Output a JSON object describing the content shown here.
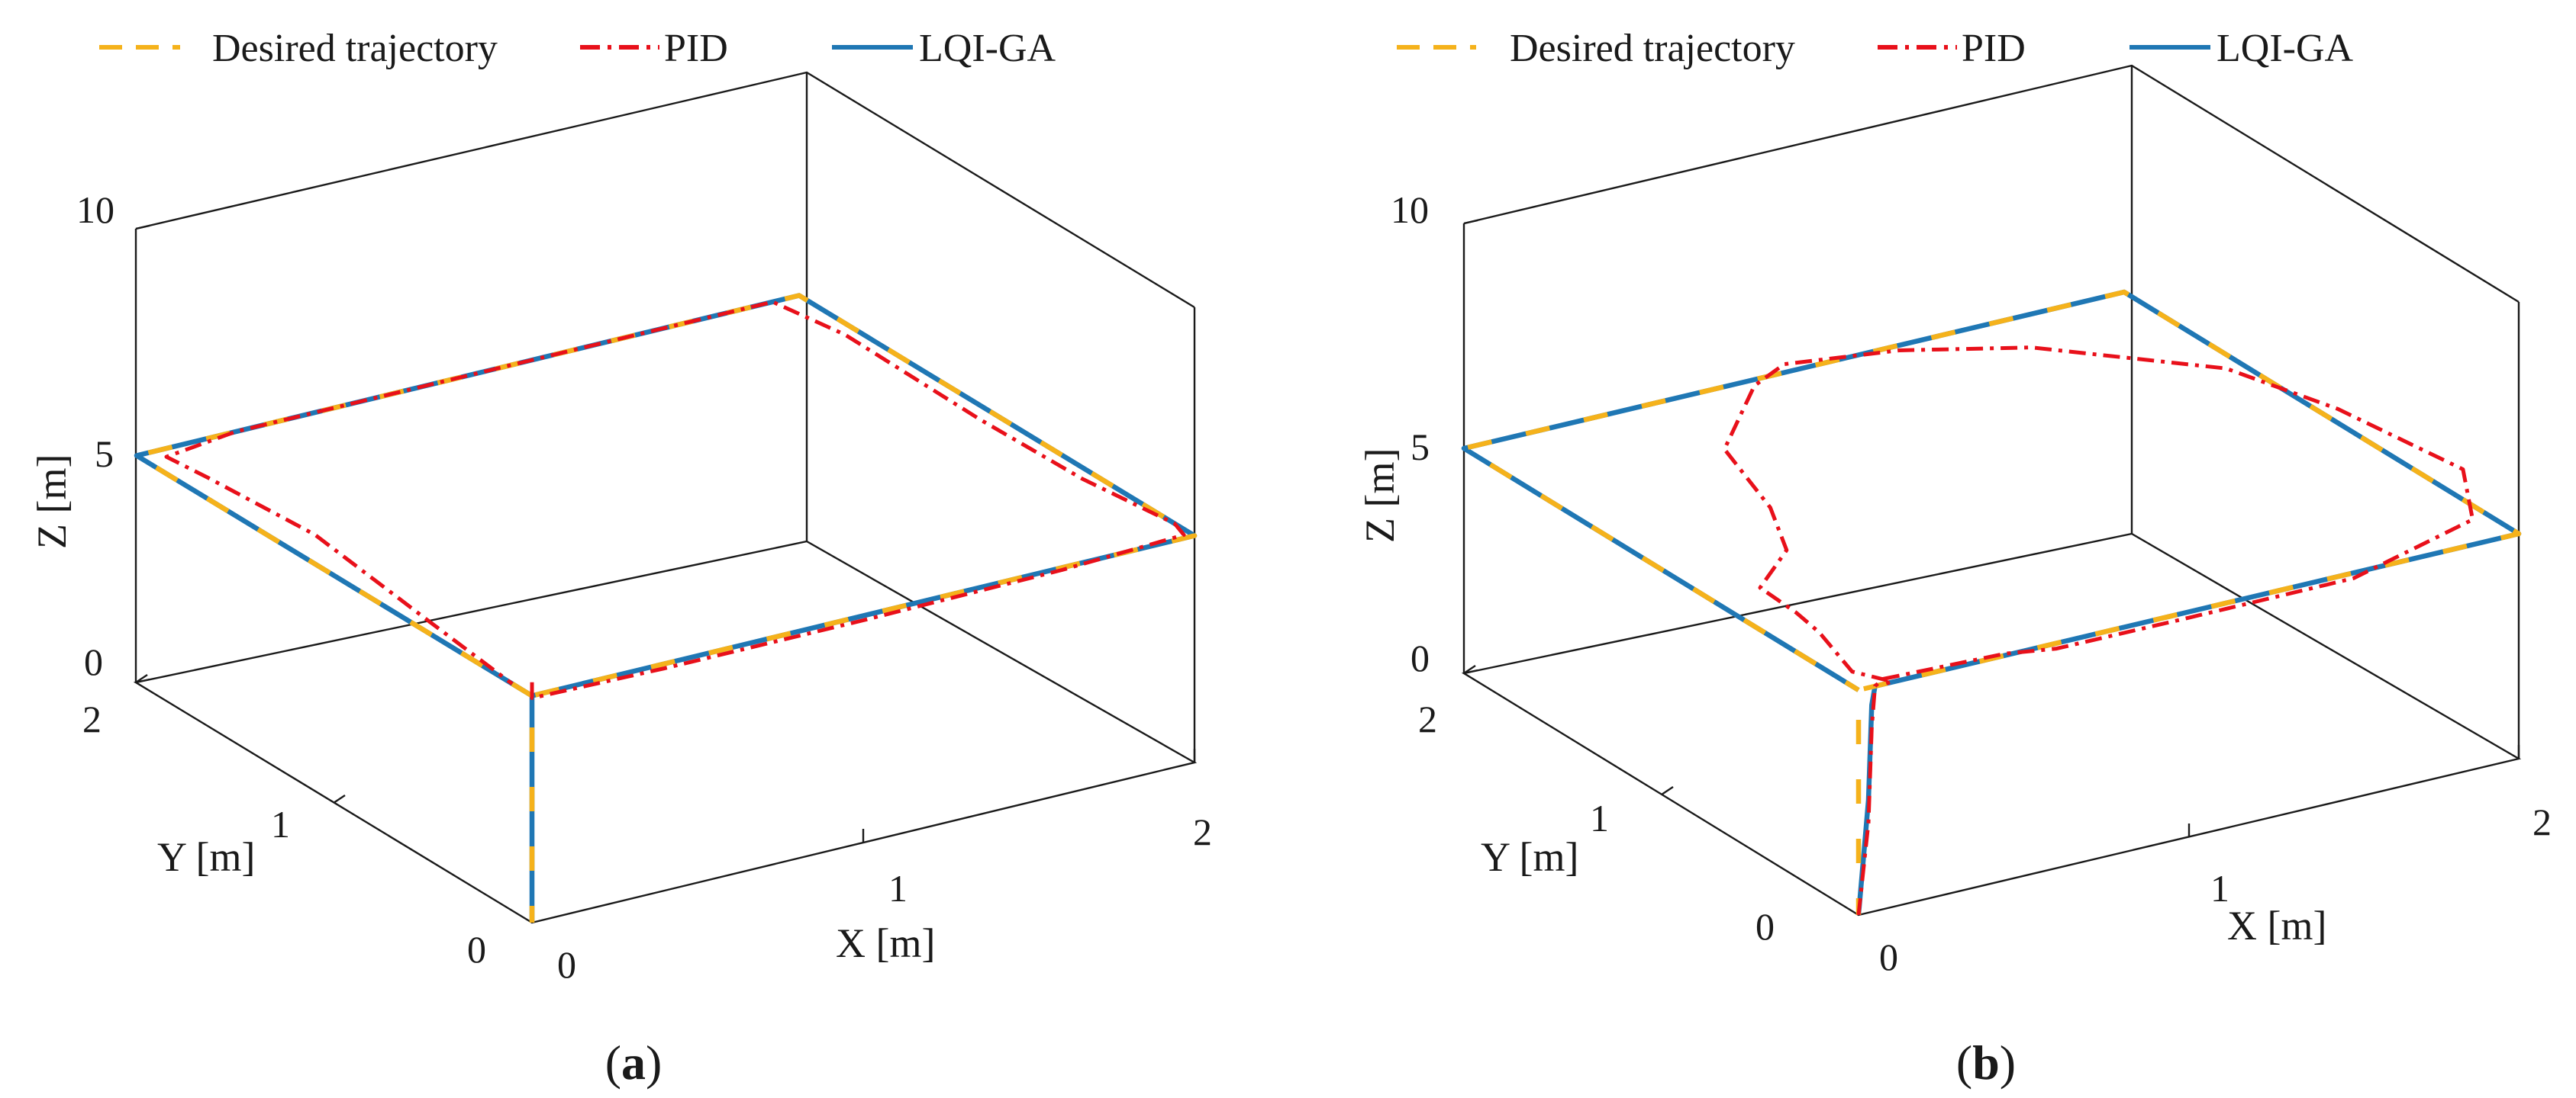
{
  "figure": {
    "legend": {
      "desired": "Desired trajectory",
      "pid": "PID",
      "lqi": "LQI-GA"
    },
    "colors": {
      "desired": "#F5B21B",
      "pid": "#E8101A",
      "lqi": "#1F77B4",
      "axes": "#1a1a1a"
    }
  },
  "chart_data": [
    {
      "type": "line3d",
      "caption_prefix": "(",
      "caption_letter": "a",
      "caption_suffix": ")",
      "xlabel": "X [m]",
      "ylabel": "Y [m]",
      "zlabel": "Z [m]",
      "xlim": [
        0,
        2
      ],
      "ylim": [
        0,
        2
      ],
      "zlim": [
        0,
        10
      ],
      "xticks": [
        "0",
        "1",
        "2"
      ],
      "yticks": [
        "0",
        "1",
        "2"
      ],
      "zticks": [
        "0",
        "5",
        "10"
      ],
      "series": [
        {
          "name": "Desired trajectory",
          "style": "dashed",
          "points": [
            [
              0,
              0,
              0
            ],
            [
              0,
              0,
              5
            ],
            [
              2,
              0,
              5
            ],
            [
              2,
              2,
              5
            ],
            [
              0,
              2,
              5
            ],
            [
              0,
              0,
              5
            ]
          ]
        },
        {
          "name": "LQI-GA",
          "style": "solid",
          "points": [
            [
              0,
              0,
              0
            ],
            [
              0,
              0,
              5
            ],
            [
              2,
              0,
              5
            ],
            [
              2,
              2,
              5
            ],
            [
              0,
              2,
              5
            ],
            [
              0,
              0,
              5
            ]
          ]
        },
        {
          "name": "PID",
          "style": "dashdot",
          "points": [
            [
              0,
              0,
              5.3
            ],
            [
              0,
              0,
              4.95
            ],
            [
              0.4,
              0,
              4.9
            ],
            [
              1.0,
              0,
              4.9
            ],
            [
              1.6,
              0,
              4.95
            ],
            [
              1.98,
              0.02,
              5.0
            ],
            [
              2.0,
              0.1,
              5.0
            ],
            [
              1.96,
              0.5,
              5.0
            ],
            [
              1.95,
              1.0,
              5.0
            ],
            [
              1.96,
              1.7,
              5.0
            ],
            [
              1.92,
              2.0,
              5.0
            ],
            [
              1.5,
              2.0,
              5.0
            ],
            [
              0.9,
              2.0,
              5.0
            ],
            [
              0.3,
              2.0,
              5.0
            ],
            [
              0.06,
              1.95,
              5.0
            ],
            [
              0.1,
              1.8,
              4.85
            ],
            [
              0.12,
              1.3,
              4.9
            ],
            [
              0.05,
              0.6,
              4.95
            ],
            [
              0,
              0.1,
              5.0
            ]
          ]
        }
      ]
    },
    {
      "type": "line3d",
      "caption_prefix": "(",
      "caption_letter": "b",
      "caption_suffix": ")",
      "xlabel": "X [m]",
      "ylabel": "Y [m]",
      "zlabel": "Z [m]",
      "xlim": [
        0,
        2
      ],
      "ylim": [
        0,
        2
      ],
      "zlim": [
        0,
        10
      ],
      "xticks": [
        "0",
        "1",
        "2"
      ],
      "yticks": [
        "0",
        "1",
        "2"
      ],
      "zticks": [
        "0",
        "5",
        "10"
      ],
      "series": [
        {
          "name": "Desired trajectory",
          "style": "dashed",
          "points": [
            [
              0,
              0,
              0
            ],
            [
              0,
              0,
              5
            ],
            [
              2,
              0,
              5
            ],
            [
              2,
              2,
              5
            ],
            [
              0,
              2,
              5
            ],
            [
              0,
              0,
              5
            ]
          ]
        },
        {
          "name": "LQI-GA",
          "style": "solid",
          "points": [
            [
              0,
              0,
              0
            ],
            [
              0.03,
              0,
              2.5
            ],
            [
              0.04,
              0,
              4.6
            ],
            [
              0.05,
              0,
              5.0
            ],
            [
              2,
              0,
              5
            ],
            [
              2,
              2,
              5
            ],
            [
              0,
              2,
              5
            ],
            [
              0,
              0,
              5
            ]
          ]
        },
        {
          "name": "PID",
          "style": "dashdot",
          "points": [
            [
              0,
              0,
              0
            ],
            [
              0.03,
              0,
              2.0
            ],
            [
              0.04,
              0,
              4.1
            ],
            [
              0.05,
              0,
              5.0
            ],
            [
              0.08,
              0.01,
              5.08
            ],
            [
              0.45,
              0.01,
              5.0
            ],
            [
              0.6,
              0,
              4.88
            ],
            [
              1.0,
              0,
              4.87
            ],
            [
              1.5,
              0,
              4.88
            ],
            [
              1.95,
              0.15,
              5.0
            ],
            [
              2.1,
              0.45,
              5.05
            ],
            [
              2.05,
              1.0,
              5.0
            ],
            [
              1.95,
              1.4,
              5.0
            ],
            [
              1.6,
              1.8,
              5.0
            ],
            [
              1.3,
              1.97,
              5.0
            ],
            [
              1.0,
              2.05,
              5.0
            ],
            [
              0.85,
              1.95,
              5.05
            ],
            [
              0.55,
              1.6,
              5.1
            ],
            [
              0.45,
              1.2,
              5.05
            ],
            [
              0.35,
              0.95,
              4.95
            ],
            [
              0.15,
              0.75,
              5.0
            ],
            [
              0.14,
              0.55,
              5.0
            ],
            [
              0.12,
              0.4,
              5.0
            ],
            [
              0.1,
              0.2,
              4.7
            ],
            [
              0.12,
              0.03,
              4.9
            ],
            [
              0.08,
              0,
              5.0
            ]
          ]
        }
      ]
    }
  ]
}
